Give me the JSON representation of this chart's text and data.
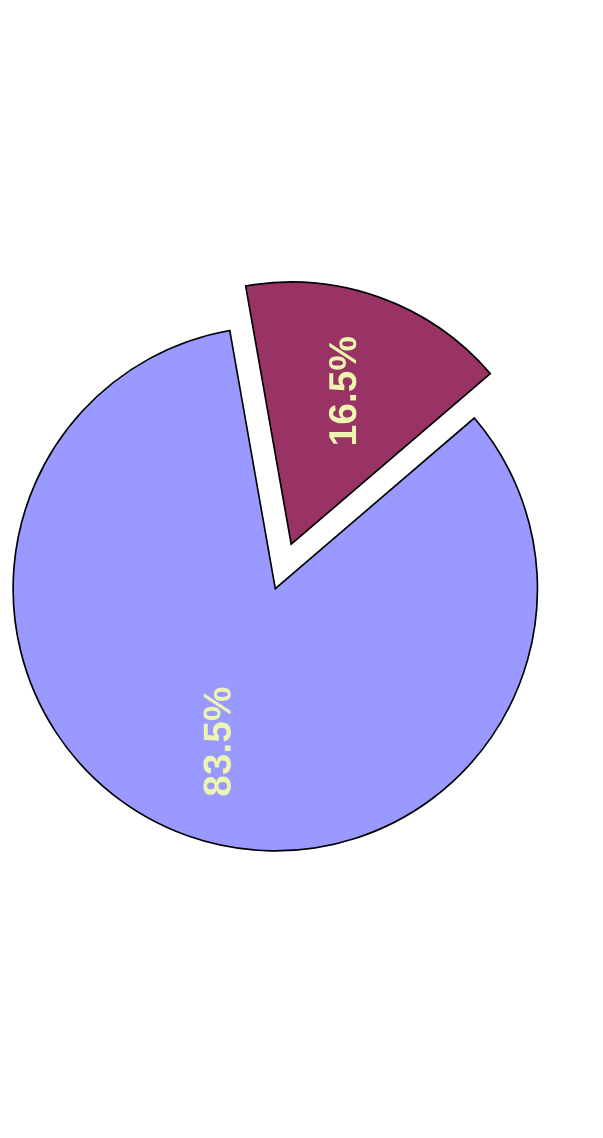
{
  "chart_data": {
    "type": "pie",
    "categories": [
      null,
      null
    ],
    "values": [
      83.5,
      16.5
    ],
    "colors": [
      "#9999ff",
      "#993366"
    ],
    "value_labels": [
      "83.5%",
      "16.5%"
    ]
  }
}
